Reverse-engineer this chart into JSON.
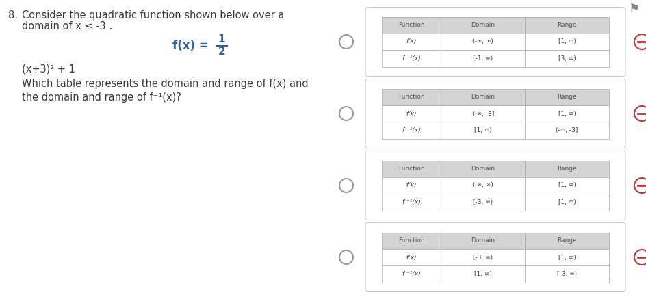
{
  "bg_color": "#ffffff",
  "question_number": "8.",
  "question_text_line1": "Consider the quadratic function shown below over a",
  "question_text_line2": "domain of x ≤ -3 .",
  "formula_line2": "(x+3)² + 1",
  "sub_question_line1": "Which table represents the domain and range of f(x) and",
  "sub_question_line2": "the domain and range of f⁻¹(x)?",
  "tables": [
    {
      "rows": [
        [
          "Function",
          "Domain",
          "Range"
        ],
        [
          "f(x)",
          "(-∞, ∞)",
          "[1, ∞)"
        ],
        [
          "f ⁻¹(x)",
          "(-1, ∞)",
          "[3, ∞)"
        ]
      ]
    },
    {
      "rows": [
        [
          "Function",
          "Domain",
          "Range"
        ],
        [
          "f(x)",
          "(-∞, -3]",
          "[1, ∞)"
        ],
        [
          "f ⁻¹(x)",
          "[1, ∞)",
          "(-∞, -3]"
        ]
      ]
    },
    {
      "rows": [
        [
          "Function",
          "Domain",
          "Range"
        ],
        [
          "f(x)",
          "(-∞, ∞)",
          "[1, ∞)"
        ],
        [
          "f ⁻¹(x)",
          "[-3, ∞)",
          "[1, ∞)"
        ]
      ]
    },
    {
      "rows": [
        [
          "Function",
          "Domain",
          "Range"
        ],
        [
          "f(x)",
          "[-3, ∞)",
          "[1, ∞)"
        ],
        [
          "f ⁻¹(x)",
          "[1, ∞)",
          "[-3, ∞)"
        ]
      ]
    }
  ],
  "text_color": "#3c3c3c",
  "blue_text": "#3060a0",
  "header_bg": "#d4d4d4",
  "cell_bg": "#ffffff",
  "table_border": "#aaaaaa",
  "option_circle_color": "#999999",
  "minus_circle_color": "#cc3333",
  "card_bg": "#ffffff",
  "card_border": "#cccccc",
  "flag_color": "#888888"
}
